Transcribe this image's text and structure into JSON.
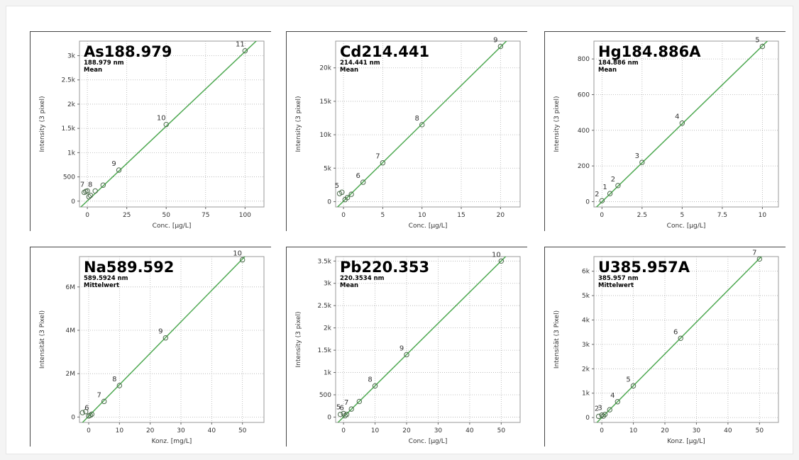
{
  "colors": {
    "line": "#4caf50",
    "point": "#4a6b4a",
    "grid": "#b0b0b0"
  },
  "chart_data": [
    {
      "type": "scatter",
      "title": "As188.979",
      "subtitle1": "188.979 nm",
      "subtitle2": "Mean",
      "xlabel": "Conc. [µg/L]",
      "ylabel": "Intensity (3 pixel)",
      "xlim": [
        -5,
        112
      ],
      "ylim": [
        -120,
        3300
      ],
      "xticks": [
        0,
        25,
        50,
        75,
        100
      ],
      "xtick_labels": [
        "0",
        "25",
        "50",
        "75",
        "100"
      ],
      "yticks": [
        0,
        500,
        1000,
        1500,
        2000,
        2500,
        3000
      ],
      "ytick_labels": [
        "0",
        "500",
        "1k",
        "1.5k",
        "2k",
        "2.5k",
        "3k"
      ],
      "fit": [
        [
          -5,
          -150
        ],
        [
          112,
          3450
        ]
      ],
      "points": [
        {
          "x": -2,
          "y": 180,
          "label": ""
        },
        {
          "x": -1,
          "y": 200,
          "label": ""
        },
        {
          "x": 0,
          "y": 210,
          "label": "7"
        },
        {
          "x": 1,
          "y": 90,
          "label": ""
        },
        {
          "x": 2,
          "y": 120,
          "label": ""
        },
        {
          "x": 5,
          "y": 210,
          "label": "8"
        },
        {
          "x": 10,
          "y": 330,
          "label": ""
        },
        {
          "x": 20,
          "y": 640,
          "label": "9"
        },
        {
          "x": 50,
          "y": 1580,
          "label": "10"
        },
        {
          "x": 100,
          "y": 3100,
          "label": "11"
        }
      ]
    },
    {
      "type": "scatter",
      "title": "Cd214.441",
      "subtitle1": "214.441 nm",
      "subtitle2": "Mean",
      "xlabel": "Conc. [µg/L]",
      "ylabel": "Intensity (3 pixel)",
      "xlim": [
        -1,
        22.5
      ],
      "ylim": [
        -800,
        24000
      ],
      "xticks": [
        0,
        5,
        10,
        15,
        20
      ],
      "xtick_labels": [
        "0",
        "5",
        "10",
        "15",
        "20"
      ],
      "yticks": [
        0,
        5000,
        10000,
        15000,
        20000
      ],
      "ytick_labels": [
        "0",
        "5k",
        "10k",
        "15k",
        "20k"
      ],
      "fit": [
        [
          -1,
          -1100
        ],
        [
          22.5,
          26000
        ]
      ],
      "points": [
        {
          "x": -0.5,
          "y": 1200,
          "label": ""
        },
        {
          "x": -0.2,
          "y": 1400,
          "label": "5"
        },
        {
          "x": 0.2,
          "y": 300,
          "label": ""
        },
        {
          "x": 0.5,
          "y": 600,
          "label": ""
        },
        {
          "x": 1,
          "y": 1100,
          "label": ""
        },
        {
          "x": 2.5,
          "y": 2900,
          "label": "6"
        },
        {
          "x": 5,
          "y": 5800,
          "label": "7"
        },
        {
          "x": 10,
          "y": 11500,
          "label": "8"
        },
        {
          "x": 20,
          "y": 23200,
          "label": "9"
        }
      ]
    },
    {
      "type": "scatter",
      "title": "Hg184.886A",
      "subtitle1": "184.886 nm",
      "subtitle2": "Mean",
      "xlabel": "Conc. [µg/L]",
      "ylabel": "Intensity (3 pixel)",
      "xlim": [
        -0.5,
        11
      ],
      "ylim": [
        -30,
        900
      ],
      "xticks": [
        0,
        2.5,
        5,
        7.5,
        10
      ],
      "xtick_labels": [
        "0",
        "2.5",
        "5",
        "7.5",
        "10"
      ],
      "yticks": [
        0,
        200,
        400,
        600,
        800
      ],
      "ytick_labels": [
        "0",
        "200",
        "400",
        "600",
        "800"
      ],
      "fit": [
        [
          -0.5,
          -45
        ],
        [
          11,
          960
        ]
      ],
      "points": [
        {
          "x": 0,
          "y": 5,
          "label": "2"
        },
        {
          "x": 0.5,
          "y": 45,
          "label": "1"
        },
        {
          "x": 1,
          "y": 90,
          "label": "2"
        },
        {
          "x": 2.5,
          "y": 220,
          "label": "3"
        },
        {
          "x": 5,
          "y": 440,
          "label": "4"
        },
        {
          "x": 10,
          "y": 870,
          "label": "5"
        }
      ]
    },
    {
      "type": "scatter",
      "title": "Na589.592",
      "subtitle1": "589.5924 nm",
      "subtitle2": "Mittelwert",
      "xlabel": "Konz. [mg/L]",
      "ylabel": "Intensität (3 Pixel)",
      "xlim": [
        -3,
        57
      ],
      "ylim": [
        -250000,
        7400000
      ],
      "xticks": [
        0,
        10,
        20,
        30,
        40,
        50
      ],
      "xtick_labels": [
        "0",
        "10",
        "20",
        "30",
        "40",
        "50"
      ],
      "yticks": [
        0,
        2000000,
        4000000,
        6000000
      ],
      "ytick_labels": [
        "0",
        "2M",
        "4M",
        "6M"
      ],
      "fit": [
        [
          -3,
          -400000
        ],
        [
          57,
          8300000
        ]
      ],
      "points": [
        {
          "x": -2,
          "y": 200000,
          "label": ""
        },
        {
          "x": -1,
          "y": 250000,
          "label": ""
        },
        {
          "x": 0,
          "y": 50000,
          "label": ""
        },
        {
          "x": 0.5,
          "y": 80000,
          "label": ""
        },
        {
          "x": 1,
          "y": 130000,
          "label": "6"
        },
        {
          "x": 5,
          "y": 720000,
          "label": "7"
        },
        {
          "x": 10,
          "y": 1450000,
          "label": "8"
        },
        {
          "x": 25,
          "y": 3650000,
          "label": "9"
        },
        {
          "x": 50,
          "y": 7250000,
          "label": "10"
        }
      ]
    },
    {
      "type": "scatter",
      "title": "Pb220.353",
      "subtitle1": "220.3534 nm",
      "subtitle2": "Mean",
      "xlabel": "Conc. [µg/L]",
      "ylabel": "Intensity (3 pixel)",
      "xlim": [
        -2.5,
        56
      ],
      "ylim": [
        -120,
        3600
      ],
      "xticks": [
        0,
        10,
        20,
        30,
        40,
        50
      ],
      "xtick_labels": [
        "0",
        "10",
        "20",
        "30",
        "40",
        "50"
      ],
      "yticks": [
        0,
        500,
        1000,
        1500,
        2000,
        2500,
        3000,
        3500
      ],
      "ytick_labels": [
        "0",
        "500",
        "1k",
        "1.5k",
        "2k",
        "2.5k",
        "3k",
        "3.5k"
      ],
      "fit": [
        [
          -2.5,
          -175
        ],
        [
          56,
          3920
        ]
      ],
      "points": [
        {
          "x": -1,
          "y": 60,
          "label": ""
        },
        {
          "x": 0,
          "y": 80,
          "label": "5"
        },
        {
          "x": 0.5,
          "y": 30,
          "label": ""
        },
        {
          "x": 1,
          "y": 60,
          "label": "6"
        },
        {
          "x": 2.5,
          "y": 180,
          "label": "7"
        },
        {
          "x": 5,
          "y": 350,
          "label": ""
        },
        {
          "x": 10,
          "y": 700,
          "label": "8"
        },
        {
          "x": 20,
          "y": 1400,
          "label": "9"
        },
        {
          "x": 50,
          "y": 3500,
          "label": "10"
        }
      ]
    },
    {
      "type": "scatter",
      "title": "U385.957A",
      "subtitle1": "385.957 nm",
      "subtitle2": "Mittelwert",
      "xlabel": "Konz. [µg/L]",
      "ylabel": "Intensität (3 Pixel)",
      "xlim": [
        -2.5,
        56
      ],
      "ylim": [
        -200,
        6600
      ],
      "xticks": [
        0,
        10,
        20,
        30,
        40,
        50
      ],
      "xtick_labels": [
        "0",
        "10",
        "20",
        "30",
        "40",
        "50"
      ],
      "yticks": [
        0,
        1000,
        2000,
        3000,
        4000,
        5000,
        6000
      ],
      "ytick_labels": [
        "0",
        "1k",
        "2k",
        "3k",
        "4k",
        "5k",
        "6k"
      ],
      "fit": [
        [
          -2.5,
          -330
        ],
        [
          56,
          7300
        ]
      ],
      "points": [
        {
          "x": -1,
          "y": 50,
          "label": ""
        },
        {
          "x": 0,
          "y": 100,
          "label": "2"
        },
        {
          "x": 0.5,
          "y": 60,
          "label": ""
        },
        {
          "x": 1,
          "y": 130,
          "label": "3"
        },
        {
          "x": 2.5,
          "y": 320,
          "label": ""
        },
        {
          "x": 5,
          "y": 650,
          "label": "4"
        },
        {
          "x": 10,
          "y": 1300,
          "label": "5"
        },
        {
          "x": 25,
          "y": 3250,
          "label": "6"
        },
        {
          "x": 50,
          "y": 6500,
          "label": "7"
        }
      ]
    }
  ]
}
